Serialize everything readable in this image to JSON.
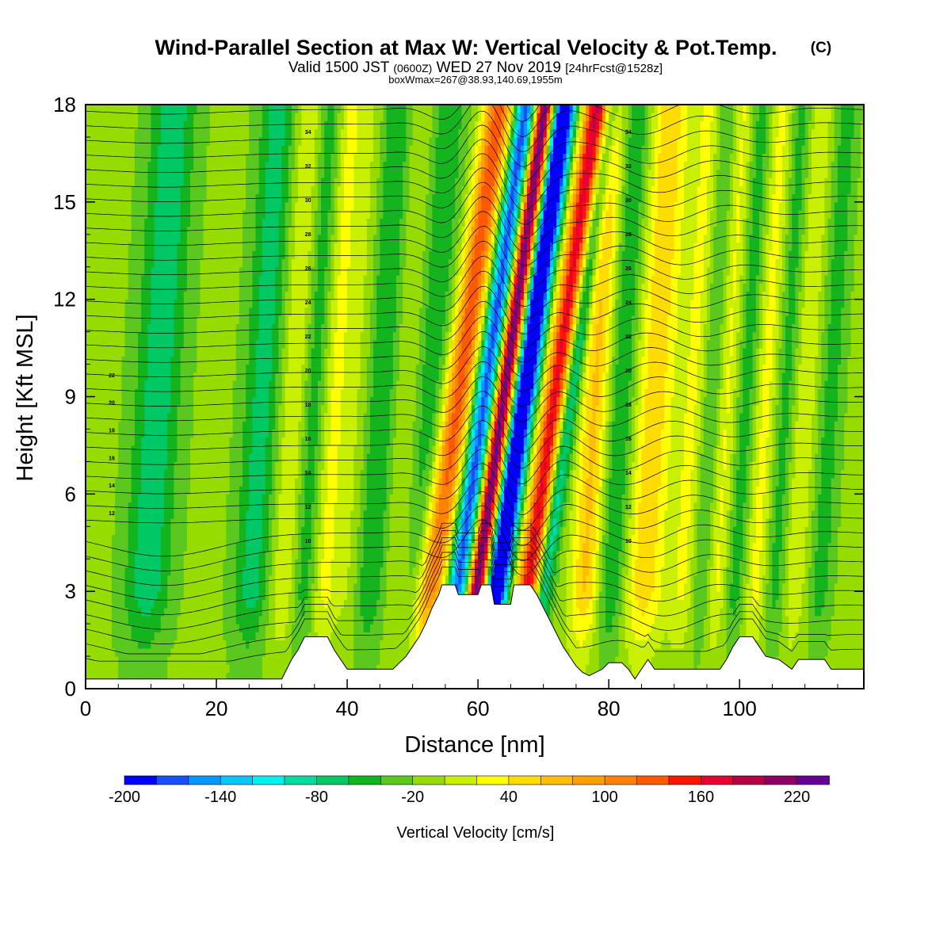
{
  "chart_data": {
    "type": "heatmap",
    "title": "Wind-Parallel Section at Max W: Vertical Velocity & Pot.Temp.",
    "title_mark": "(C)",
    "subtitle_prefix": "Valid 1500 JST",
    "subtitle_utc": "(0600Z)",
    "subtitle_date": "WED 27 Nov 2019",
    "subtitle_fcst": "[24hrFcst@1528z]",
    "subtitle_box": "boxWmax=267@38.93,140.69,1955m",
    "xlabel": "Distance [nm]",
    "ylabel": "Height [Kft MSL]",
    "xlim": [
      0,
      119
    ],
    "ylim": [
      0,
      18
    ],
    "xticks": [
      0,
      20,
      40,
      60,
      80,
      100
    ],
    "yticks": [
      0,
      3,
      6,
      9,
      12,
      15,
      18
    ],
    "colorbar": {
      "label": "Vertical Velocity [cm/s]",
      "min": -200,
      "max": 260,
      "step": 20,
      "tick_values": [
        -200,
        -140,
        -80,
        -20,
        40,
        100,
        160,
        220
      ],
      "colors": [
        "#0000ff",
        "#1750ff",
        "#0a96ff",
        "#00c8ff",
        "#00f0f0",
        "#00dca0",
        "#00c864",
        "#14b41e",
        "#5ac81e",
        "#96dc00",
        "#c8f000",
        "#ffff00",
        "#ffdc00",
        "#ffbe00",
        "#ffa000",
        "#ff8200",
        "#ff5a00",
        "#ff1400",
        "#e60032",
        "#b40046",
        "#8c0064",
        "#640096"
      ]
    },
    "background_w": -15,
    "updrafts": [
      {
        "x": 32,
        "w": 40,
        "sigma": 1.6
      },
      {
        "x": 38,
        "w": 45,
        "sigma": 1.5
      },
      {
        "x": 42,
        "w": 25,
        "sigma": 1.4
      },
      {
        "x": 49,
        "w": 25,
        "sigma": 1.4
      },
      {
        "x": 57,
        "w": 150,
        "sigma": 1.6
      },
      {
        "x": 64,
        "w": 260,
        "sigma": 1.0
      },
      {
        "x": 72,
        "w": 190,
        "sigma": 1.5
      },
      {
        "x": 78,
        "w": 80,
        "sigma": 1.6
      },
      {
        "x": 87,
        "w": 70,
        "sigma": 2.2
      },
      {
        "x": 93,
        "w": 40,
        "sigma": 1.4
      },
      {
        "x": 98,
        "w": 50,
        "sigma": 1.3
      },
      {
        "x": 104,
        "w": 45,
        "sigma": 1.3
      },
      {
        "x": 110,
        "w": 35,
        "sigma": 1.2
      }
    ],
    "downdrafts": [
      {
        "x": 11,
        "w": -60,
        "sigma": 2.5
      },
      {
        "x": 27,
        "w": -55,
        "sigma": 2.0
      },
      {
        "x": 35,
        "w": -45,
        "sigma": 1.5
      },
      {
        "x": 45,
        "w": -45,
        "sigma": 2.0
      },
      {
        "x": 53,
        "w": -40,
        "sigma": 2.0
      },
      {
        "x": 61,
        "w": -160,
        "sigma": 1.2
      },
      {
        "x": 67,
        "w": -230,
        "sigma": 1.3
      },
      {
        "x": 74,
        "w": -130,
        "sigma": 1.0
      },
      {
        "x": 82,
        "w": -50,
        "sigma": 1.6
      },
      {
        "x": 96,
        "w": -40,
        "sigma": 1.3
      },
      {
        "x": 101,
        "w": -40,
        "sigma": 1.3
      },
      {
        "x": 107,
        "w": -35,
        "sigma": 1.2
      },
      {
        "x": 114,
        "w": -35,
        "sigma": 1.2
      }
    ],
    "terrain": [
      [
        0,
        0.3
      ],
      [
        30,
        0.3
      ],
      [
        30.5,
        0.5
      ],
      [
        31.5,
        0.9
      ],
      [
        32.5,
        1.2
      ],
      [
        33.5,
        1.6
      ],
      [
        37,
        1.6
      ],
      [
        38,
        1.2
      ],
      [
        39,
        0.9
      ],
      [
        40,
        0.6
      ],
      [
        47,
        0.6
      ],
      [
        48,
        0.8
      ],
      [
        49,
        1.0
      ],
      [
        50,
        1.3
      ],
      [
        51,
        1.6
      ],
      [
        52,
        2.0
      ],
      [
        53,
        2.5
      ],
      [
        54,
        2.9
      ],
      [
        54.5,
        3.2
      ],
      [
        56.5,
        3.2
      ],
      [
        57,
        2.9
      ],
      [
        60,
        2.9
      ],
      [
        60.5,
        3.2
      ],
      [
        62,
        3.2
      ],
      [
        62.5,
        2.6
      ],
      [
        65,
        2.6
      ],
      [
        65.5,
        3.2
      ],
      [
        68,
        3.2
      ],
      [
        69,
        2.9
      ],
      [
        70,
        2.5
      ],
      [
        71,
        2.1
      ],
      [
        72,
        1.7
      ],
      [
        73,
        1.3
      ],
      [
        74,
        1.0
      ],
      [
        75,
        0.7
      ],
      [
        76,
        0.5
      ],
      [
        77,
        0.4
      ],
      [
        79,
        0.6
      ],
      [
        80,
        0.8
      ],
      [
        82,
        0.8
      ],
      [
        83,
        0.6
      ],
      [
        84,
        0.3
      ],
      [
        85,
        0.6
      ],
      [
        86,
        0.9
      ],
      [
        87,
        0.6
      ],
      [
        97,
        0.6
      ],
      [
        98,
        0.9
      ],
      [
        99,
        1.3
      ],
      [
        100,
        1.6
      ],
      [
        102,
        1.6
      ],
      [
        103,
        1.3
      ],
      [
        104,
        1.0
      ],
      [
        106,
        0.9
      ],
      [
        108,
        0.6
      ],
      [
        109,
        0.9
      ],
      [
        113,
        0.9
      ],
      [
        114,
        0.6
      ],
      [
        119,
        0.6
      ]
    ],
    "theta_labels_left": [
      "22",
      "20",
      "18",
      "16",
      "14",
      "12"
    ],
    "theta_labels_mid": [
      "34",
      "32",
      "30",
      "28",
      "26",
      "24",
      "22",
      "20",
      "18",
      "16",
      "14",
      "12",
      "10"
    ],
    "theta_labels_right": [
      "34",
      "32",
      "30",
      "28",
      "26",
      "24",
      "22",
      "20",
      "18",
      "16",
      "14",
      "12",
      "10"
    ]
  }
}
